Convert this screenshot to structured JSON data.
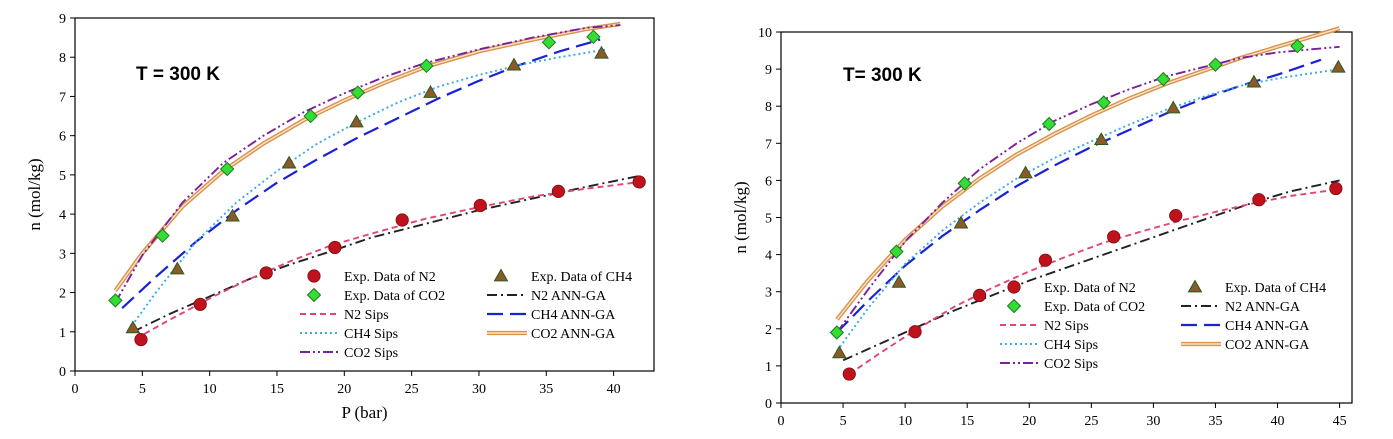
{
  "chart_data": [
    {
      "type": "scatter",
      "annotation": "T = 300 K",
      "xlabel": "P (bar)",
      "ylabel": "n (mol/kg)",
      "xlim": [
        0,
        43
      ],
      "ylim": [
        0,
        9
      ],
      "xticks": [
        0,
        5,
        10,
        15,
        20,
        25,
        30,
        35,
        40
      ],
      "yticks": [
        0,
        1,
        2,
        3,
        4,
        5,
        6,
        7,
        8,
        9
      ],
      "grid": false,
      "legend_position": "lower-right",
      "series": [
        {
          "name": "Exp. Data of N2",
          "kind": "points",
          "marker": "circle",
          "color": "#c0121d",
          "x": [
            4.9,
            9.3,
            14.2,
            19.3,
            24.3,
            30.1,
            35.9,
            41.9
          ],
          "y": [
            0.8,
            1.7,
            2.5,
            3.15,
            3.85,
            4.22,
            4.58,
            4.82
          ]
        },
        {
          "name": "Exp. Data of CH4",
          "kind": "points",
          "marker": "triangle",
          "color": "#8b5a2b",
          "x": [
            4.3,
            7.6,
            11.7,
            15.9,
            20.9,
            26.4,
            32.6,
            39.1
          ],
          "y": [
            1.1,
            2.6,
            3.95,
            5.3,
            6.35,
            7.1,
            7.8,
            8.1
          ]
        },
        {
          "name": "Exp. Data of CO2",
          "kind": "points",
          "marker": "diamond",
          "color": "#33dd33",
          "x": [
            3.0,
            6.5,
            11.3,
            17.5,
            21.0,
            26.1,
            35.2,
            38.5
          ],
          "y": [
            1.8,
            3.45,
            5.15,
            6.5,
            7.1,
            7.78,
            8.38,
            8.52
          ]
        },
        {
          "name": "N2 ANN-GA",
          "kind": "line",
          "style": "dashdot",
          "color": "#222222",
          "x": [
            4.3,
            7,
            10,
            13,
            16,
            19,
            22,
            26,
            30,
            34,
            38,
            42
          ],
          "y": [
            1.0,
            1.45,
            1.9,
            2.35,
            2.72,
            3.05,
            3.4,
            3.75,
            4.1,
            4.4,
            4.7,
            4.98
          ]
        },
        {
          "name": "N2 Sips",
          "kind": "line",
          "style": "dashed",
          "color": "#e0457b",
          "x": [
            4.5,
            7,
            10,
            13,
            16,
            19,
            22,
            26,
            30,
            34,
            38,
            42
          ],
          "y": [
            0.82,
            1.3,
            1.85,
            2.35,
            2.8,
            3.2,
            3.5,
            3.88,
            4.18,
            4.45,
            4.65,
            4.82
          ]
        },
        {
          "name": "CH4 ANN-GA",
          "kind": "line",
          "style": "longdash",
          "color": "#1a22d6",
          "x": [
            3.5,
            6,
            9,
            12,
            15,
            18,
            21,
            24,
            27,
            30,
            33,
            36,
            39
          ],
          "y": [
            1.6,
            2.4,
            3.3,
            4.1,
            4.8,
            5.4,
            5.95,
            6.45,
            6.95,
            7.4,
            7.8,
            8.15,
            8.45
          ]
        },
        {
          "name": "CH4 Sips",
          "kind": "line",
          "style": "dotted",
          "color": "#39a9e8",
          "x": [
            4.0,
            6,
            9,
            12,
            15,
            18,
            21,
            24,
            27,
            30,
            33,
            36,
            39.5
          ],
          "y": [
            1.05,
            2.0,
            3.3,
            4.3,
            5.1,
            5.8,
            6.35,
            6.85,
            7.25,
            7.55,
            7.8,
            8.0,
            8.2
          ]
        },
        {
          "name": "CO2 ANN-GA",
          "kind": "line",
          "style": "double",
          "color": "#d9924a",
          "x": [
            3,
            5,
            8,
            11,
            14,
            17,
            20,
            23,
            26,
            30,
            34,
            38,
            40.5
          ],
          "y": [
            2.05,
            3.0,
            4.2,
            5.1,
            5.8,
            6.4,
            6.9,
            7.35,
            7.75,
            8.15,
            8.45,
            8.72,
            8.85
          ]
        },
        {
          "name": "CO2 Sips",
          "kind": "line",
          "style": "dashdotdot",
          "color": "#7a1f9e",
          "x": [
            3,
            5,
            8,
            11,
            14,
            17,
            20,
            23,
            26,
            30,
            34,
            38,
            40.5
          ],
          "y": [
            1.75,
            2.95,
            4.3,
            5.3,
            6.0,
            6.6,
            7.08,
            7.5,
            7.85,
            8.2,
            8.5,
            8.75,
            8.82
          ]
        }
      ]
    },
    {
      "type": "scatter",
      "annotation": "T= 300 K",
      "xlabel": "",
      "ylabel": "n (mol/kg)",
      "xlim": [
        0,
        46
      ],
      "ylim": [
        0,
        10
      ],
      "xticks": [
        0,
        5,
        10,
        15,
        20,
        25,
        30,
        35,
        40,
        45
      ],
      "yticks": [
        0,
        1,
        2,
        3,
        4,
        5,
        6,
        7,
        8,
        9,
        10
      ],
      "grid": false,
      "legend_position": "lower-right",
      "series": [
        {
          "name": "Exp. Data of N2",
          "kind": "points",
          "marker": "circle",
          "color": "#c0121d",
          "x": [
            5.5,
            10.8,
            16.0,
            21.3,
            26.8,
            31.8,
            38.5,
            44.7
          ],
          "y": [
            0.78,
            1.92,
            2.9,
            3.85,
            4.48,
            5.05,
            5.48,
            5.78
          ]
        },
        {
          "name": "Exp. Data of CH4",
          "kind": "points",
          "marker": "triangle",
          "color": "#8b5a2b",
          "x": [
            4.7,
            9.5,
            14.5,
            19.7,
            25.8,
            31.6,
            38.1,
            44.9
          ],
          "y": [
            1.35,
            3.25,
            4.85,
            6.2,
            7.1,
            7.95,
            8.65,
            9.05
          ]
        },
        {
          "name": "Exp. Data of CO2",
          "kind": "points",
          "marker": "diamond",
          "color": "#33dd33",
          "x": [
            4.5,
            9.3,
            14.8,
            21.6,
            26.0,
            30.8,
            35.0,
            41.6
          ],
          "y": [
            1.9,
            4.08,
            5.92,
            7.52,
            8.1,
            8.73,
            9.12,
            9.62
          ]
        },
        {
          "name": "N2 ANN-GA",
          "kind": "line",
          "style": "dashdot",
          "color": "#222222",
          "x": [
            5,
            8,
            11,
            14,
            17,
            20,
            23,
            26,
            29,
            32,
            35,
            38,
            41,
            45
          ],
          "y": [
            1.15,
            1.6,
            2.05,
            2.5,
            2.9,
            3.3,
            3.65,
            4.0,
            4.35,
            4.7,
            5.05,
            5.4,
            5.7,
            6.0
          ]
        },
        {
          "name": "N2 Sips",
          "kind": "line",
          "style": "dashed",
          "color": "#e0457b",
          "x": [
            5.5,
            8,
            11,
            14,
            17,
            20,
            23,
            26,
            29,
            32,
            35,
            38,
            41,
            44.7
          ],
          "y": [
            0.78,
            1.35,
            2.0,
            2.6,
            3.1,
            3.55,
            3.95,
            4.32,
            4.62,
            4.9,
            5.15,
            5.38,
            5.58,
            5.75
          ]
        },
        {
          "name": "CH4 ANN-GA",
          "kind": "line",
          "style": "longdash",
          "color": "#1a22d6",
          "x": [
            4.5,
            7,
            10,
            13,
            16,
            19,
            22,
            25,
            28,
            31,
            34,
            37,
            40,
            43.5
          ],
          "y": [
            1.9,
            2.75,
            3.7,
            4.5,
            5.2,
            5.85,
            6.4,
            6.9,
            7.35,
            7.8,
            8.2,
            8.55,
            8.85,
            9.25
          ]
        },
        {
          "name": "CH4 Sips",
          "kind": "line",
          "style": "dotted",
          "color": "#39a9e8",
          "x": [
            4.5,
            7,
            10,
            13,
            16,
            19,
            22,
            25,
            28,
            31,
            34,
            37,
            40,
            45
          ],
          "y": [
            1.4,
            2.55,
            3.75,
            4.65,
            5.4,
            6.05,
            6.6,
            7.05,
            7.5,
            7.9,
            8.25,
            8.55,
            8.75,
            9.0
          ]
        },
        {
          "name": "CO2 ANN-GA",
          "kind": "line",
          "style": "double",
          "color": "#d9924a",
          "x": [
            4.5,
            7,
            10,
            13,
            16,
            19,
            22,
            25,
            28,
            31,
            34,
            37,
            40,
            45
          ],
          "y": [
            2.25,
            3.3,
            4.4,
            5.3,
            6.05,
            6.7,
            7.25,
            7.75,
            8.2,
            8.6,
            8.95,
            9.3,
            9.6,
            10.1
          ]
        },
        {
          "name": "CO2 Sips",
          "kind": "line",
          "style": "dashdotdot",
          "color": "#7a1f9e",
          "x": [
            4.5,
            7,
            10,
            13,
            16,
            19,
            22,
            25,
            28,
            31,
            34,
            37,
            40,
            45
          ],
          "y": [
            1.9,
            3.05,
            4.35,
            5.4,
            6.3,
            7.0,
            7.6,
            8.05,
            8.45,
            8.8,
            9.05,
            9.3,
            9.45,
            9.6
          ]
        }
      ]
    }
  ]
}
